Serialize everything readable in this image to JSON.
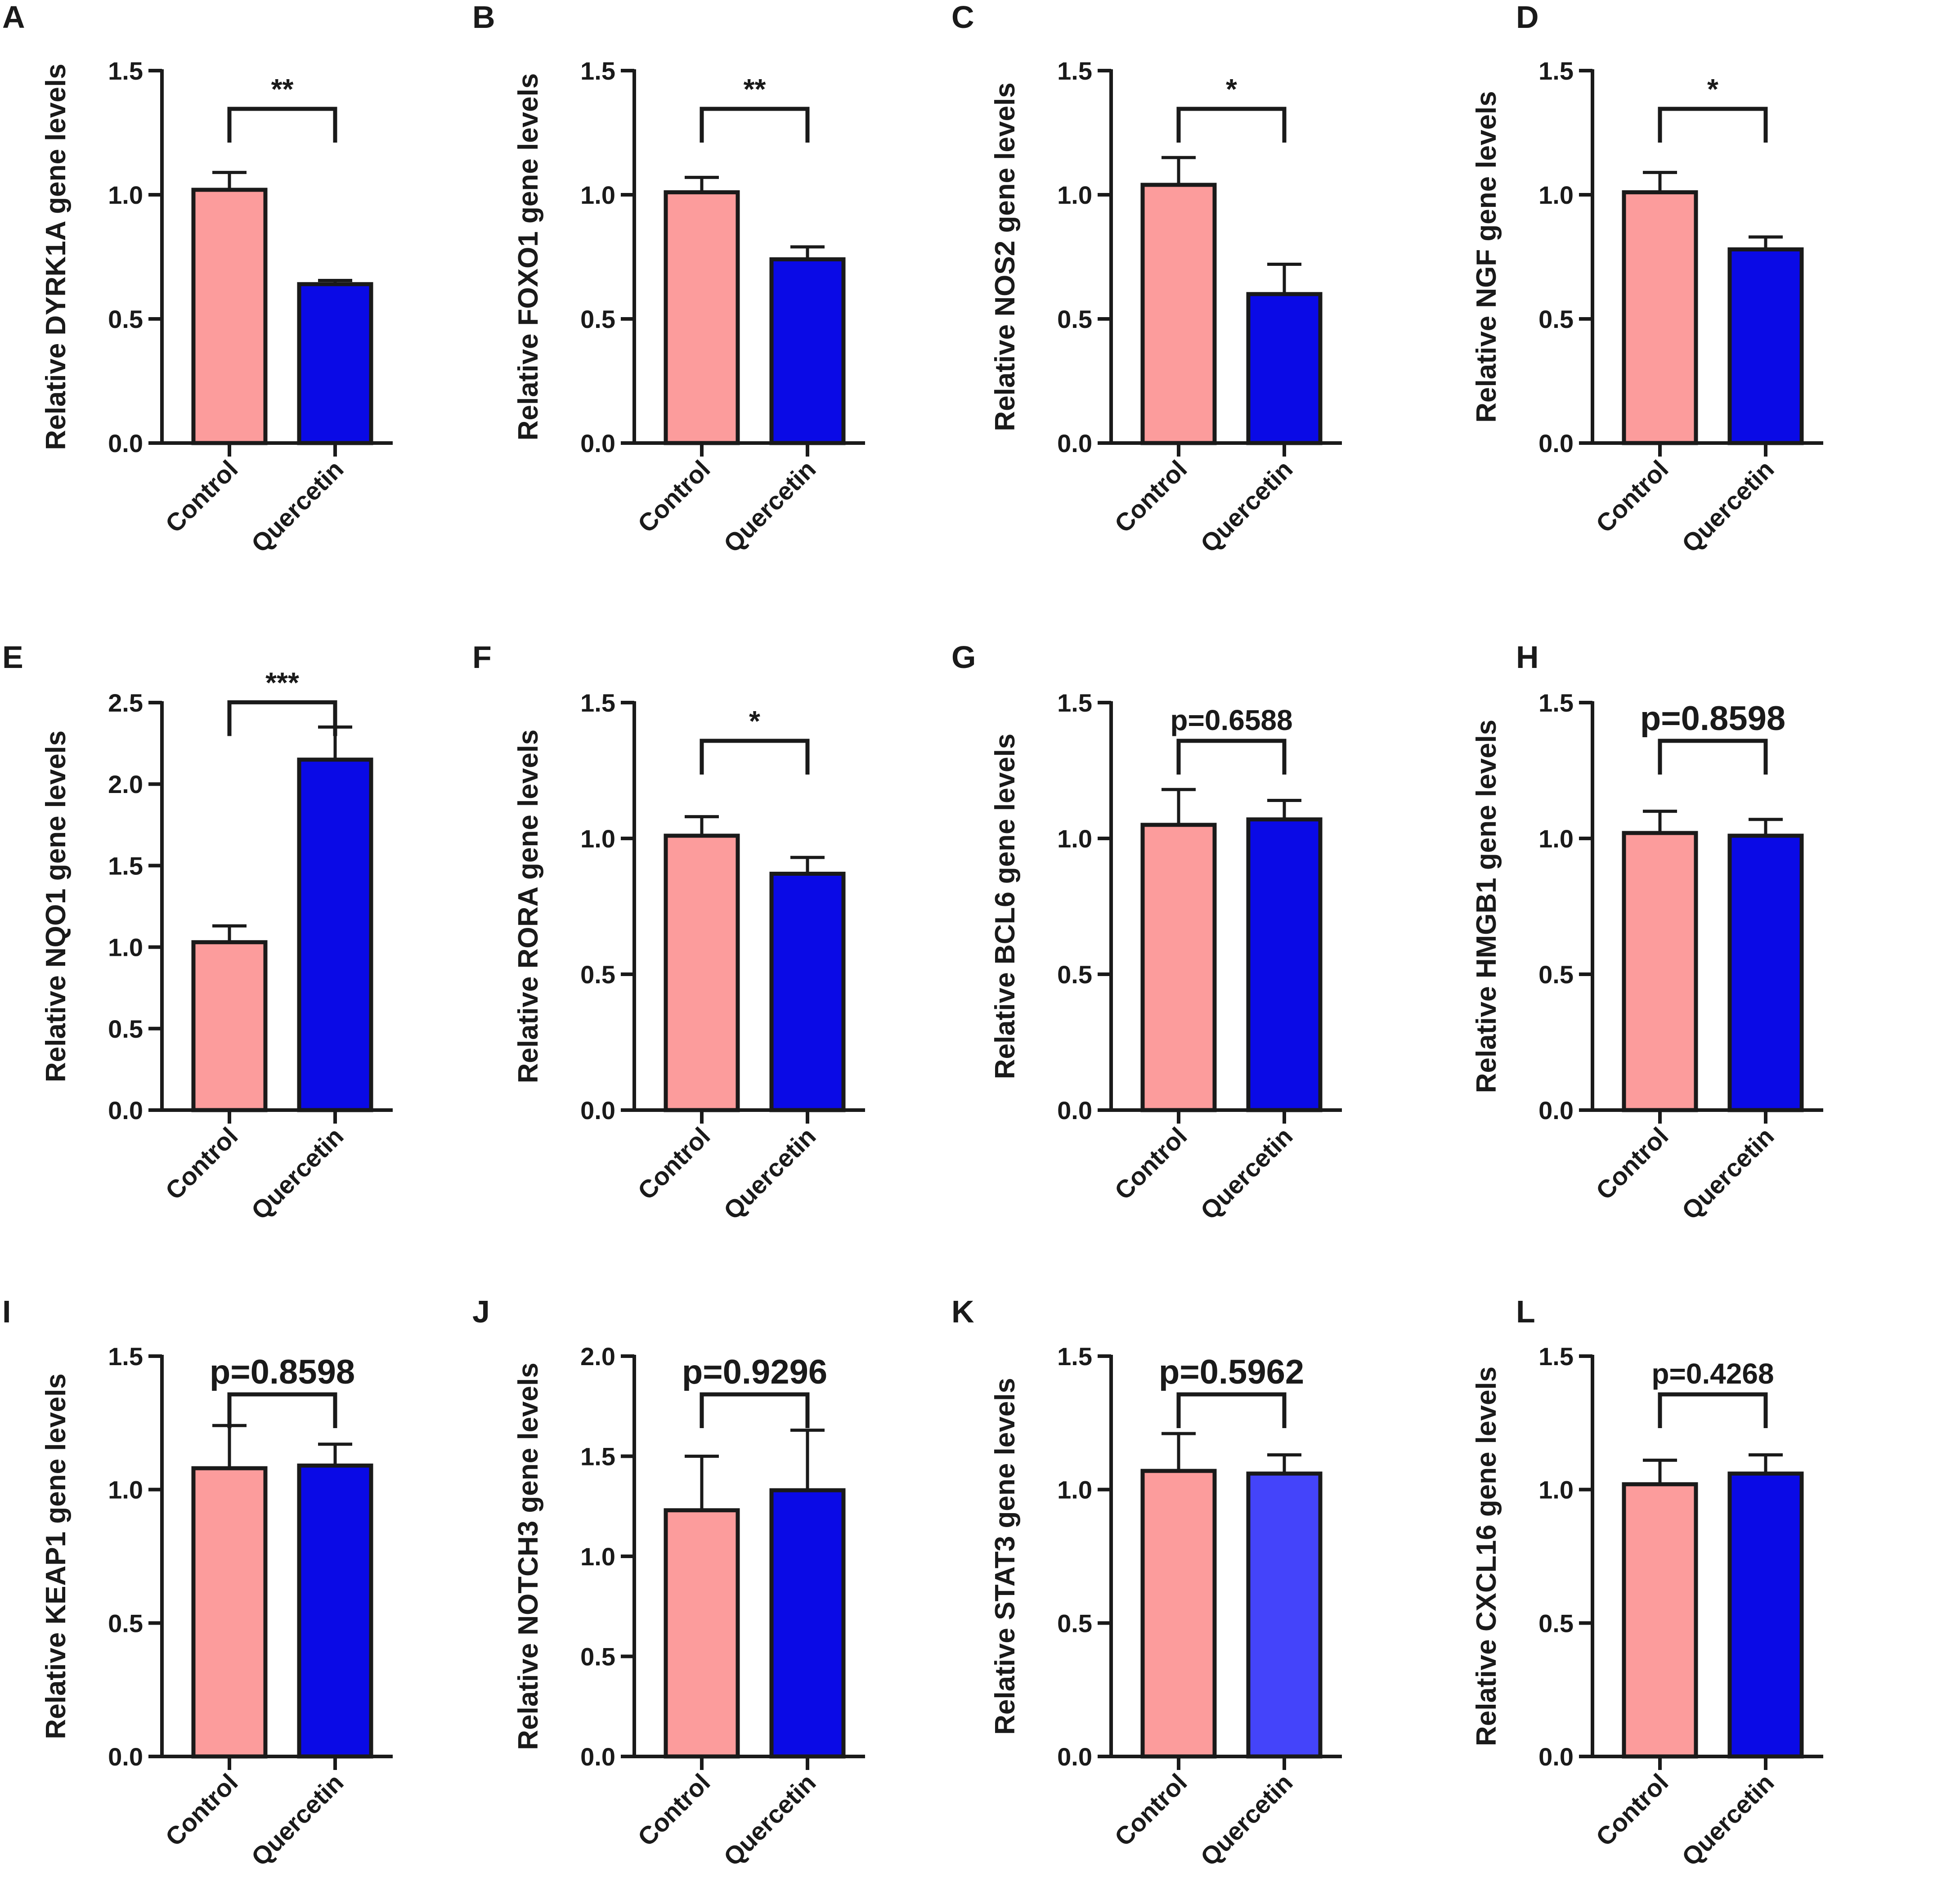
{
  "colors": {
    "control": "#fc9c9c",
    "quercetin": "#0a0ae6",
    "quercetin_alt": "#4444fa",
    "axis": "#1a1a1a"
  },
  "chart_data": [
    {
      "panel": "A",
      "type": "bar",
      "ylabel": "Relative DYRK1A gene levels",
      "categories": [
        "Control",
        "Quercetin"
      ],
      "values": [
        1.02,
        0.64
      ],
      "errors": [
        0.07,
        0.015
      ],
      "ylim": [
        0,
        1.5
      ],
      "yticks": [
        "0.0",
        "0.5",
        "1.0",
        "1.5"
      ],
      "significance": "**"
    },
    {
      "panel": "B",
      "type": "bar",
      "ylabel": "Relative FOXO1 gene levels",
      "categories": [
        "Control",
        "Quercetin"
      ],
      "values": [
        1.01,
        0.74
      ],
      "errors": [
        0.06,
        0.05
      ],
      "ylim": [
        0,
        1.5
      ],
      "yticks": [
        "0.0",
        "0.5",
        "1.0",
        "1.5"
      ],
      "significance": "**"
    },
    {
      "panel": "C",
      "type": "bar",
      "ylabel": "Relative NOS2 gene levels",
      "categories": [
        "Control",
        "Quercetin"
      ],
      "values": [
        1.04,
        0.6
      ],
      "errors": [
        0.11,
        0.12
      ],
      "ylim": [
        0,
        1.5
      ],
      "yticks": [
        "0.0",
        "0.5",
        "1.0",
        "1.5"
      ],
      "significance": "*"
    },
    {
      "panel": "D",
      "type": "bar",
      "ylabel": "Relative NGF gene levels",
      "categories": [
        "Control",
        "Quercetin"
      ],
      "values": [
        1.01,
        0.78
      ],
      "errors": [
        0.08,
        0.05
      ],
      "ylim": [
        0,
        1.5
      ],
      "yticks": [
        "0.0",
        "0.5",
        "1.0",
        "1.5"
      ],
      "significance": "*"
    },
    {
      "panel": "E",
      "type": "bar",
      "ylabel": "Relative NQO1 gene levels",
      "categories": [
        "Control",
        "Quercetin"
      ],
      "values": [
        1.03,
        2.15
      ],
      "errors": [
        0.1,
        0.2
      ],
      "ylim": [
        0,
        2.5
      ],
      "yticks": [
        "0.0",
        "0.5",
        "1.0",
        "1.5",
        "2.0",
        "2.5"
      ],
      "significance": "***"
    },
    {
      "panel": "F",
      "type": "bar",
      "ylabel": "Relative RORA gene levels",
      "categories": [
        "Control",
        "Quercetin"
      ],
      "values": [
        1.01,
        0.87
      ],
      "errors": [
        0.07,
        0.06
      ],
      "ylim": [
        0,
        1.5
      ],
      "yticks": [
        "0.0",
        "0.5",
        "1.0",
        "1.5"
      ],
      "significance": "*"
    },
    {
      "panel": "G",
      "type": "bar",
      "ylabel": "Relative BCL6 gene levels",
      "categories": [
        "Control",
        "Quercetin"
      ],
      "values": [
        1.05,
        1.07
      ],
      "errors": [
        0.13,
        0.07
      ],
      "ylim": [
        0,
        1.5
      ],
      "yticks": [
        "0.0",
        "0.5",
        "1.0",
        "1.5"
      ],
      "significance": "p=0.6588"
    },
    {
      "panel": "H",
      "type": "bar",
      "ylabel": "Relative HMGB1 gene levels",
      "categories": [
        "Control",
        "Quercetin"
      ],
      "values": [
        1.02,
        1.01
      ],
      "errors": [
        0.08,
        0.06
      ],
      "ylim": [
        0,
        1.5
      ],
      "yticks": [
        "0.0",
        "0.5",
        "1.0",
        "1.5"
      ],
      "significance": "p=0.8598"
    },
    {
      "panel": "I",
      "type": "bar",
      "ylabel": "Relative KEAP1 gene levels",
      "categories": [
        "Control",
        "Quercetin"
      ],
      "values": [
        1.08,
        1.09
      ],
      "errors": [
        0.16,
        0.08
      ],
      "ylim": [
        0,
        1.5
      ],
      "yticks": [
        "0.0",
        "0.5",
        "1.0",
        "1.5"
      ],
      "significance": "p=0.8598"
    },
    {
      "panel": "J",
      "type": "bar",
      "ylabel": "Relative NOTCH3 gene levels",
      "categories": [
        "Control",
        "Quercetin"
      ],
      "values": [
        1.23,
        1.33
      ],
      "errors": [
        0.27,
        0.3
      ],
      "ylim": [
        0,
        2.0
      ],
      "yticks": [
        "0.0",
        "0.5",
        "1.0",
        "1.5",
        "2.0"
      ],
      "significance": "p=0.9296"
    },
    {
      "panel": "K",
      "type": "bar",
      "ylabel": "Relative STAT3 gene levels",
      "categories": [
        "Control",
        "Quercetin"
      ],
      "values": [
        1.07,
        1.06
      ],
      "errors": [
        0.14,
        0.07
      ],
      "ylim": [
        0,
        1.5
      ],
      "yticks": [
        "0.0",
        "0.5",
        "1.0",
        "1.5"
      ],
      "significance": "p=0.5962"
    },
    {
      "panel": "L",
      "type": "bar",
      "ylabel": "Relative CXCL16 gene levels",
      "categories": [
        "Control",
        "Quercetin"
      ],
      "values": [
        1.02,
        1.06
      ],
      "errors": [
        0.09,
        0.07
      ],
      "ylim": [
        0,
        1.5
      ],
      "yticks": [
        "0.0",
        "0.5",
        "1.0",
        "1.5"
      ],
      "significance": "p=0.4268"
    }
  ]
}
